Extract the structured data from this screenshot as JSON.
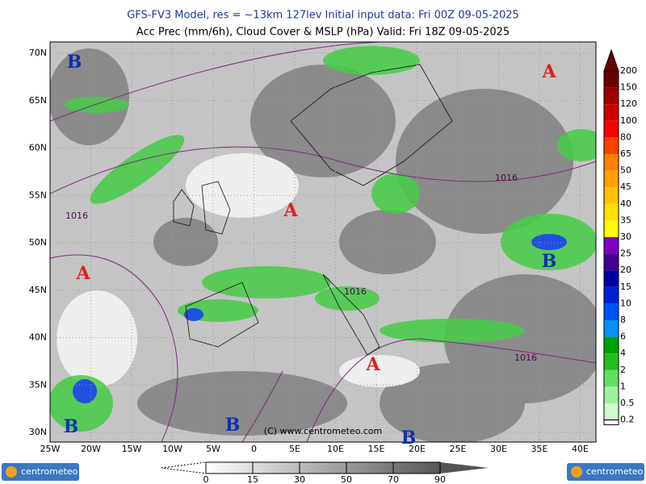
{
  "header": {
    "title": "GFS-FV3 Model, res = ~13km 127lev    Initial input data: Fri 00Z 09-05-2025",
    "subtitle": "Acc Prec (mm/6h), Cloud Cover & MSLP (hPa)  Valid: Fri 18Z 09-05-2025"
  },
  "map": {
    "lat_labels": [
      "70N",
      "65N",
      "60N",
      "55N",
      "50N",
      "45N",
      "40N",
      "35N",
      "30N"
    ],
    "lon_labels": [
      "25W",
      "20W",
      "15W",
      "10W",
      "5W",
      "0",
      "5E",
      "10E",
      "15E",
      "20E",
      "25E",
      "30E",
      "35E",
      "40E"
    ],
    "highs": [
      "A",
      "A",
      "A",
      "A"
    ],
    "lows": [
      "B",
      "B",
      "B",
      "B",
      "B"
    ],
    "isobar_labels": [
      "1016",
      "1016",
      "1016",
      "1016"
    ],
    "copyright": "(C) www.centrometeo.com"
  },
  "precip_legend": {
    "labels": [
      "200",
      "150",
      "120",
      "100",
      "80",
      "65",
      "50",
      "45",
      "40",
      "35",
      "30",
      "25",
      "20",
      "15",
      "10",
      "8",
      "6",
      "4",
      "2",
      "1",
      "0.5",
      "0.2"
    ]
  },
  "cloud_legend": {
    "labels": [
      "0",
      "15",
      "30",
      "50",
      "70",
      "90"
    ]
  },
  "logos": {
    "left": "centrometeo",
    "right": "centrometeo"
  }
}
